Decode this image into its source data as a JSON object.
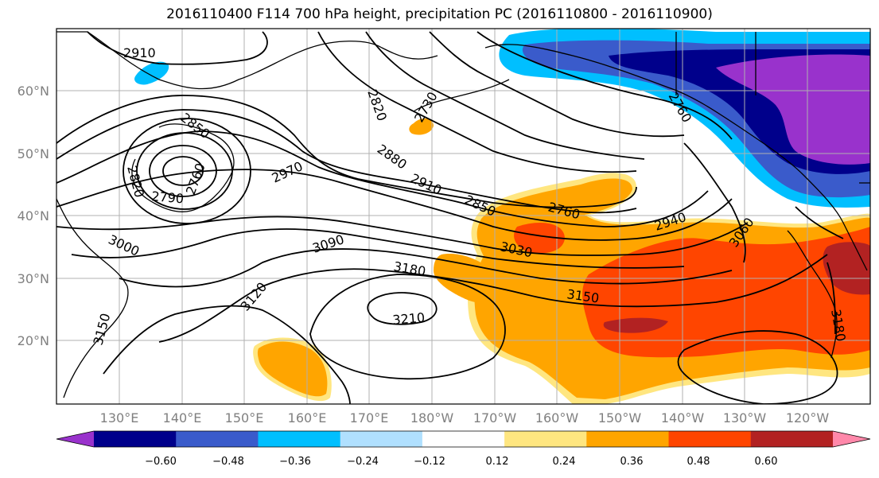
{
  "title": "2016110400 F114 700 hPa height, precipitation PC (2016110800 - 2016110900)",
  "lat_labels": [
    "60°N",
    "50°N",
    "40°N",
    "30°N",
    "20°N"
  ],
  "lon_labels": [
    "130°E",
    "140°E",
    "150°E",
    "160°E",
    "170°E",
    "180°W",
    "170°W",
    "160°W",
    "150°W",
    "140°W",
    "130°W",
    "120°W"
  ],
  "colorbar": {
    "colors": [
      "#9932CC",
      "#00008B",
      "#3A5BCB",
      "#00BFFF",
      "#B0E0FF",
      "#FFFFFF",
      "#FFE680",
      "#FFA500",
      "#FF4500",
      "#B22222",
      "#FF88AA"
    ],
    "labels": [
      "−0.60",
      "−0.48",
      "−0.36",
      "−0.24",
      "−0.12",
      "0.12",
      "0.24",
      "0.36",
      "0.48",
      "0.60"
    ]
  },
  "contour_labels": [
    "2910",
    "2850",
    "2820",
    "2790",
    "2760",
    "3000",
    "2970",
    "3090",
    "3120",
    "3150",
    "3180",
    "3210",
    "2820",
    "2730",
    "2880",
    "2910",
    "2850",
    "2760",
    "3030",
    "2940",
    "3060",
    "3150",
    "3180",
    "2760"
  ]
}
